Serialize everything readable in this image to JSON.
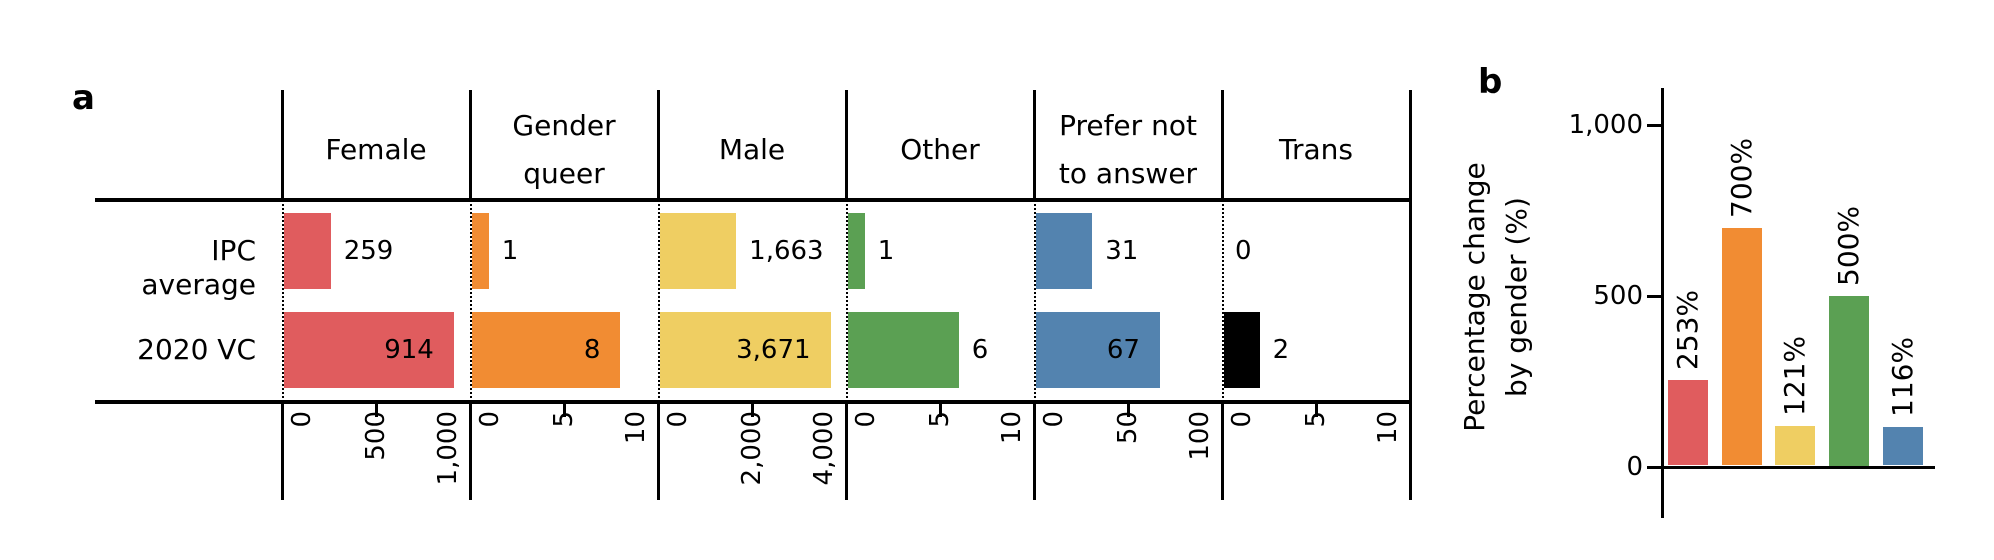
{
  "figure": {
    "background": "#ffffff",
    "text_color": "#000000"
  },
  "chart_data": [
    {
      "id": "a",
      "panel_label": "a",
      "type": "bar",
      "orientation": "horizontal",
      "layout": "small-multiples-table",
      "grid": false,
      "categories": [
        "Female",
        "Gender queer",
        "Male",
        "Other",
        "Prefer not to answer",
        "Trans"
      ],
      "column_headers": [
        "Female",
        "Gender\nqueer",
        "Male",
        "Other",
        "Prefer not\nto answer",
        "Trans"
      ],
      "series": [
        {
          "name": "IPC average",
          "values": [
            259,
            1,
            1663,
            1,
            31,
            0
          ],
          "value_labels": [
            "259",
            "1",
            "1,663",
            "1",
            "31",
            "0"
          ]
        },
        {
          "name": "2020 VC",
          "values": [
            914,
            8,
            3671,
            6,
            67,
            2
          ],
          "value_labels": [
            "914",
            "8",
            "3,671",
            "6",
            "67",
            "2"
          ]
        }
      ],
      "x_axes": [
        {
          "category": "Female",
          "ticks": [
            0,
            500,
            1000
          ],
          "tick_labels": [
            "0",
            "500",
            "1,000"
          ],
          "max": 1000
        },
        {
          "category": "Gender queer",
          "ticks": [
            0,
            5,
            10
          ],
          "tick_labels": [
            "0",
            "5",
            "10"
          ],
          "max": 10
        },
        {
          "category": "Male",
          "ticks": [
            0,
            2000,
            4000
          ],
          "tick_labels": [
            "0",
            "2,000",
            "4,000"
          ],
          "max": 4000
        },
        {
          "category": "Other",
          "ticks": [
            0,
            5,
            10
          ],
          "tick_labels": [
            "0",
            "5",
            "10"
          ],
          "max": 10
        },
        {
          "category": "Prefer not to answer",
          "ticks": [
            0,
            50,
            100
          ],
          "tick_labels": [
            "0",
            "50",
            "100"
          ],
          "max": 100
        },
        {
          "category": "Trans",
          "ticks": [
            0,
            5,
            10
          ],
          "tick_labels": [
            "0",
            "5",
            "10"
          ],
          "max": 10
        }
      ],
      "colors": [
        "#E05C5E",
        "#F18C33",
        "#EFCE62",
        "#5BA053",
        "#5383AF",
        "#000000"
      ]
    },
    {
      "id": "b",
      "panel_label": "b",
      "type": "bar",
      "orientation": "vertical",
      "grid": false,
      "legend": "none",
      "ylabel": "Percentage change\nby gender (%)",
      "values": [
        253,
        700,
        121,
        500,
        116
      ],
      "bar_labels": [
        "253%",
        "700%",
        "121%",
        "500%",
        "116%"
      ],
      "yticks": [
        0,
        500,
        1000
      ],
      "ytick_labels": [
        "0",
        "500",
        "1,000"
      ],
      "ylim": [
        0,
        1000
      ],
      "colors": [
        "#E05C5E",
        "#F18C33",
        "#EFCE62",
        "#5BA053",
        "#5383AF"
      ]
    }
  ]
}
